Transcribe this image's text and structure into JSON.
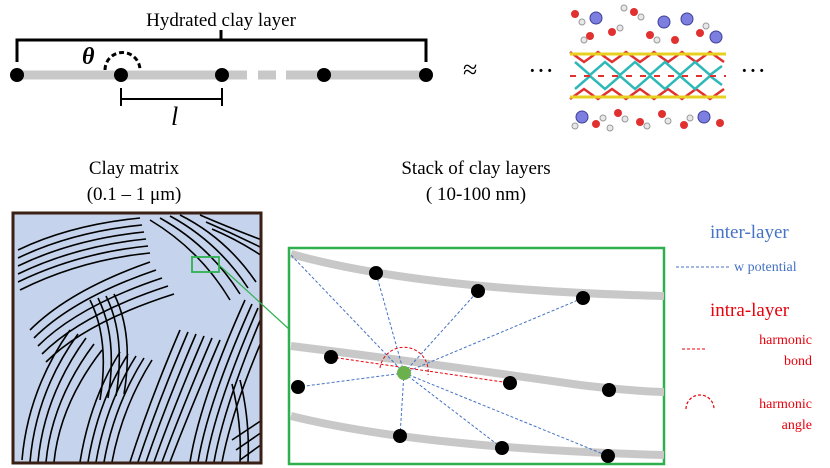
{
  "top": {
    "title": "Hydrated clay layer",
    "theta": "θ",
    "bond_length": "l",
    "approx": "≈",
    "ellipsis_left": "···",
    "ellipsis_right": "···"
  },
  "clay_matrix": {
    "line1": "Clay matrix",
    "line2": "(0.1 – 1 μm)"
  },
  "stack": {
    "line1": "Stack of clay layers",
    "line2": "( 10-100 nm)"
  },
  "legend": {
    "inter_layer": "inter-layer",
    "w_potential": "w potential",
    "intra_layer": "intra-layer",
    "harmonic_bond_1": "harmonic",
    "harmonic_bond_2": "bond",
    "harmonic_angle_1": "harmonic",
    "harmonic_angle_2": "angle"
  },
  "colors": {
    "inter_layer": "#4472c4",
    "intra_layer": "#e8000b",
    "zoom_box": "#2eb04f",
    "center_bead": "#6ab04c",
    "layer": "#c8c8c8",
    "matrix_bg": "#c5d4ec"
  }
}
